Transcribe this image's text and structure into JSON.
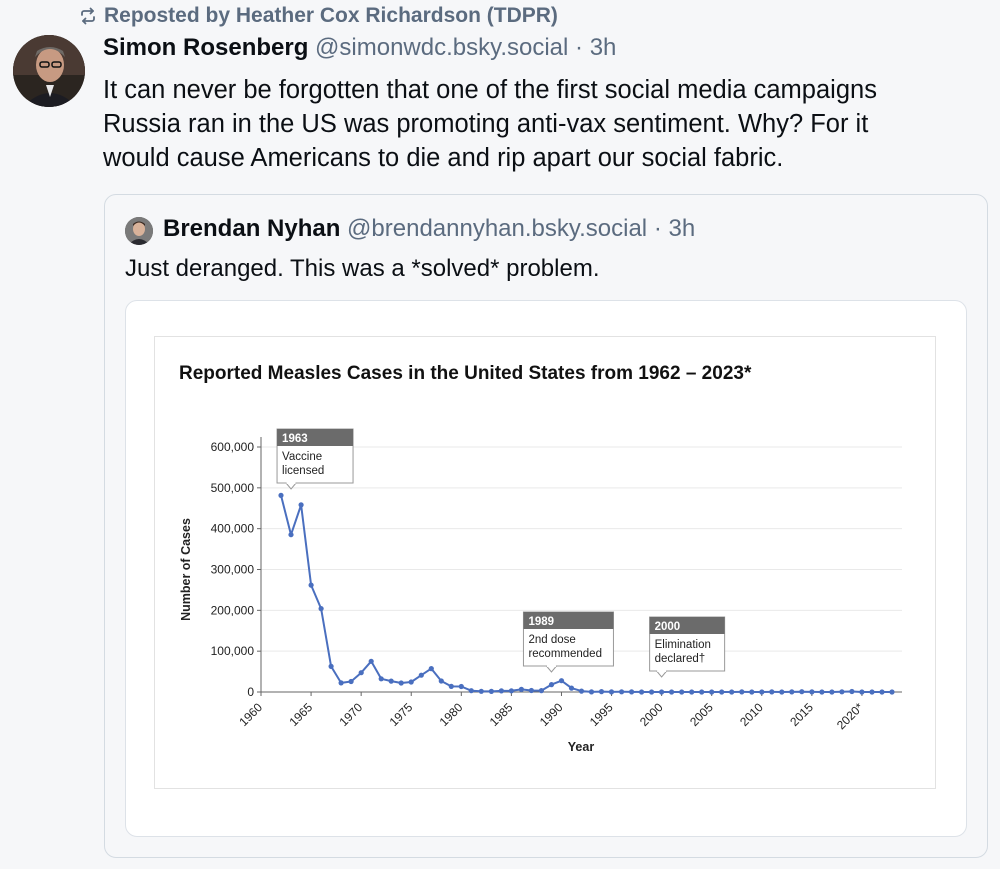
{
  "repost": {
    "icon": "repost-icon",
    "text": "Reposted by Heather Cox Richardson (TDPR)"
  },
  "post": {
    "author_name": "Simon Rosenberg",
    "handle": "@simonwdc.bsky.social",
    "separator": "·",
    "time": "3h",
    "text_lines": [
      "It can never be forgotten that one of the first social media campaigns",
      "Russia ran in the US was promoting anti-vax sentiment.  Why? For it",
      "would cause Americans to die and rip apart our social fabric."
    ]
  },
  "quote": {
    "author_name": "Brendan Nyhan",
    "handle": "@brendannyhan.bsky.social",
    "separator": "·",
    "time": "3h",
    "text": "Just deranged. This was a *solved* problem."
  },
  "chart_data": {
    "type": "line",
    "title": "Reported Measles Cases in the United States from 1962 – 2023*",
    "xlabel": "Year",
    "ylabel": "Number of Cases",
    "xlim": [
      1960,
      2024
    ],
    "ylim": [
      0,
      600000
    ],
    "grid": true,
    "x_ticks": [
      1960,
      1965,
      1970,
      1975,
      1980,
      1985,
      1990,
      1995,
      2000,
      2005,
      2010,
      2015,
      2020
    ],
    "x_tick_labels": [
      "1960",
      "1965",
      "1970",
      "1975",
      "1980",
      "1985",
      "1990",
      "1995",
      "2000",
      "2005",
      "2010",
      "2015",
      "2020*"
    ],
    "y_ticks": [
      0,
      100000,
      200000,
      300000,
      400000,
      500000,
      600000
    ],
    "y_tick_labels": [
      "0",
      "100,000",
      "200,000",
      "300,000",
      "400,000",
      "500,000",
      "600,000"
    ],
    "color": "#4a6fbf",
    "x": [
      1962,
      1963,
      1964,
      1965,
      1966,
      1967,
      1968,
      1969,
      1970,
      1971,
      1972,
      1973,
      1974,
      1975,
      1976,
      1977,
      1978,
      1979,
      1980,
      1981,
      1982,
      1983,
      1984,
      1985,
      1986,
      1987,
      1988,
      1989,
      1990,
      1991,
      1992,
      1993,
      1994,
      1995,
      1996,
      1997,
      1998,
      1999,
      2000,
      2001,
      2002,
      2003,
      2004,
      2005,
      2006,
      2007,
      2008,
      2009,
      2010,
      2011,
      2012,
      2013,
      2014,
      2015,
      2016,
      2017,
      2018,
      2019,
      2020,
      2021,
      2022,
      2023
    ],
    "values": [
      481530,
      385156,
      458083,
      261904,
      204136,
      62705,
      22231,
      25826,
      47351,
      75290,
      32275,
      26690,
      22094,
      24374,
      41126,
      57345,
      26871,
      13597,
      13506,
      3124,
      1714,
      1497,
      2587,
      2822,
      6282,
      3655,
      3396,
      18193,
      27786,
      9643,
      2237,
      312,
      963,
      309,
      508,
      138,
      100,
      100,
      86,
      116,
      44,
      56,
      37,
      66,
      55,
      43,
      140,
      71,
      63,
      220,
      55,
      187,
      667,
      188,
      86,
      120,
      375,
      1282,
      13,
      49,
      121,
      59
    ],
    "annotations": [
      {
        "year": 1963,
        "header": "1963",
        "lines": [
          "Vaccine",
          "licensed"
        ]
      },
      {
        "year": 1989,
        "header": "1989",
        "lines": [
          "2nd dose",
          "recommended"
        ]
      },
      {
        "year": 2000,
        "header": "2000",
        "lines": [
          "Elimination",
          "declared†"
        ]
      }
    ]
  }
}
